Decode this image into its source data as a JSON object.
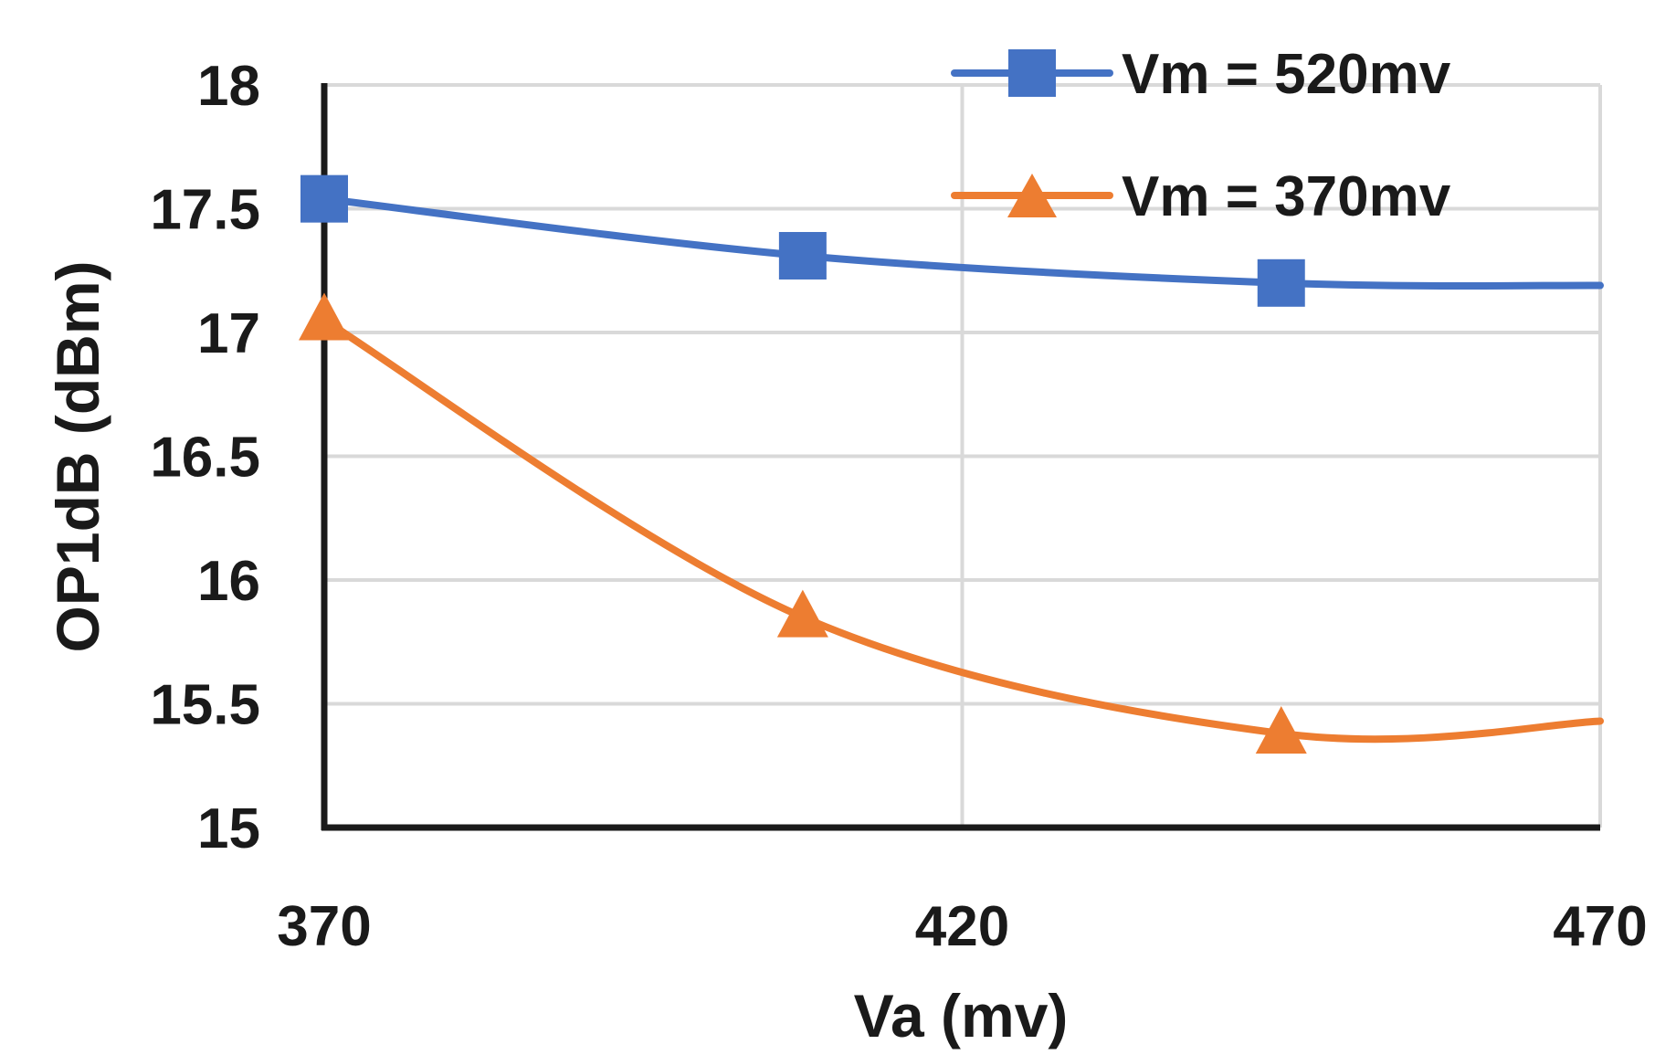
{
  "chart_data": {
    "type": "line",
    "title": "",
    "xlabel": "Va (mv)",
    "ylabel": "OP1dB (dBm)",
    "xlim": [
      370,
      470
    ],
    "ylim": [
      15,
      18
    ],
    "x_ticks": [
      "370",
      "420",
      "470"
    ],
    "y_ticks": [
      "15",
      "15.5",
      "16",
      "16.5",
      "17",
      "17.5",
      "18"
    ],
    "grid": true,
    "legend_position": "top-right",
    "series": [
      {
        "name": "Vm = 520mv",
        "color": "#4472C4",
        "marker": "square",
        "x": [
          370,
          407.5,
          445
        ],
        "y": [
          17.54,
          17.31,
          17.2
        ],
        "curve_end": {
          "x": 470,
          "y": 17.19
        }
      },
      {
        "name": "Vm = 370mv",
        "color": "#ED7D31",
        "marker": "triangle",
        "x": [
          370,
          407.5,
          445
        ],
        "y": [
          17.05,
          15.85,
          15.38
        ],
        "curve_end": {
          "x": 470,
          "y": 15.43
        }
      }
    ]
  }
}
